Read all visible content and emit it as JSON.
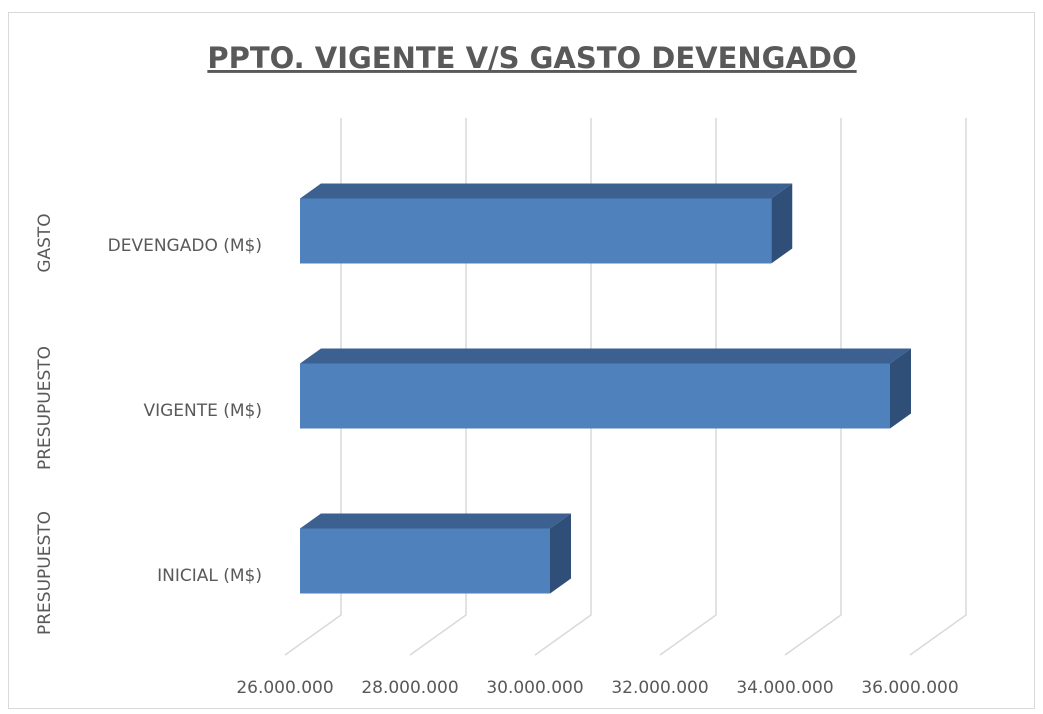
{
  "chart_data": {
    "type": "bar3d",
    "title": "PPTO. VIGENTE V/S GASTO DEVENGADO",
    "categories": [
      "INICIAL (M$)",
      "VIGENTE (M$)",
      "DEVENGADO (M$)"
    ],
    "category_groups": [
      "PRESUPUESTO",
      "PRESUPUESTO",
      "GASTO"
    ],
    "values": [
      30000000,
      35440000,
      33540000
    ],
    "color": "#4f81bd",
    "xlim": [
      26000000,
      37000000
    ],
    "xticks": [
      {
        "value": 26000000,
        "label": "26.000.000"
      },
      {
        "value": 28000000,
        "label": "28.000.000"
      },
      {
        "value": 30000000,
        "label": "30.000.000"
      },
      {
        "value": 32000000,
        "label": "32.000.000"
      },
      {
        "value": 34000000,
        "label": "34.000.000"
      },
      {
        "value": 36000000,
        "label": "36.000.000"
      }
    ],
    "grid": true
  }
}
